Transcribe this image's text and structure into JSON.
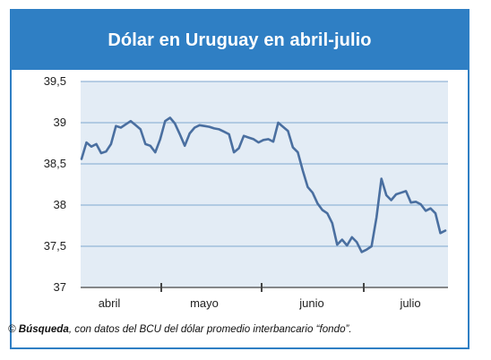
{
  "title": "Dólar en Uruguay en abril-julio",
  "caption": {
    "copyright_symbol": "©",
    "source_name": "Búsqueda",
    "text": ", con datos del BCU del dólar promedio interbancario “fondo”."
  },
  "colors": {
    "frame": "#2f7fc4",
    "plot_background": "#e3ecf5",
    "grid": "#93b5d8",
    "line": "#4a6fa0"
  },
  "chart_data": {
    "type": "line",
    "title": "Dólar en Uruguay en abril-julio",
    "xlabel": "",
    "ylabel": "",
    "ylim": [
      37,
      39.5
    ],
    "y_ticks": [
      "39,5",
      "39",
      "38,5",
      "38",
      "37,5",
      "37"
    ],
    "y_tick_values": [
      39.5,
      39,
      38.5,
      38,
      37.5,
      37
    ],
    "x_tick_labels": [
      "abril",
      "mayo",
      "junio",
      "julio"
    ],
    "grid": true,
    "legend": "none",
    "series": [
      {
        "values": [
          38.56,
          38.76,
          38.71,
          38.74,
          38.63,
          38.65,
          38.74,
          38.96,
          38.94,
          38.98,
          39.02,
          38.97,
          38.92,
          38.74,
          38.72,
          38.64,
          38.8,
          39.02,
          39.06,
          38.99,
          38.86,
          38.72,
          38.87,
          38.94,
          38.97,
          38.96,
          38.95,
          38.93,
          38.92,
          38.89,
          38.86,
          38.64,
          38.69,
          38.84,
          38.82,
          38.8,
          38.76,
          38.79,
          38.8,
          38.77,
          39.0,
          38.95,
          38.9,
          38.7,
          38.64,
          38.42,
          38.22,
          38.15,
          38.02,
          37.94,
          37.9,
          37.78,
          37.52,
          37.58,
          37.51,
          37.61,
          37.55,
          37.43,
          37.46,
          37.5,
          37.85,
          38.32,
          38.12,
          38.06,
          38.13,
          38.15,
          38.17,
          38.03,
          38.04,
          38.01,
          37.93,
          37.96,
          37.9,
          37.66,
          37.69
        ]
      }
    ]
  }
}
